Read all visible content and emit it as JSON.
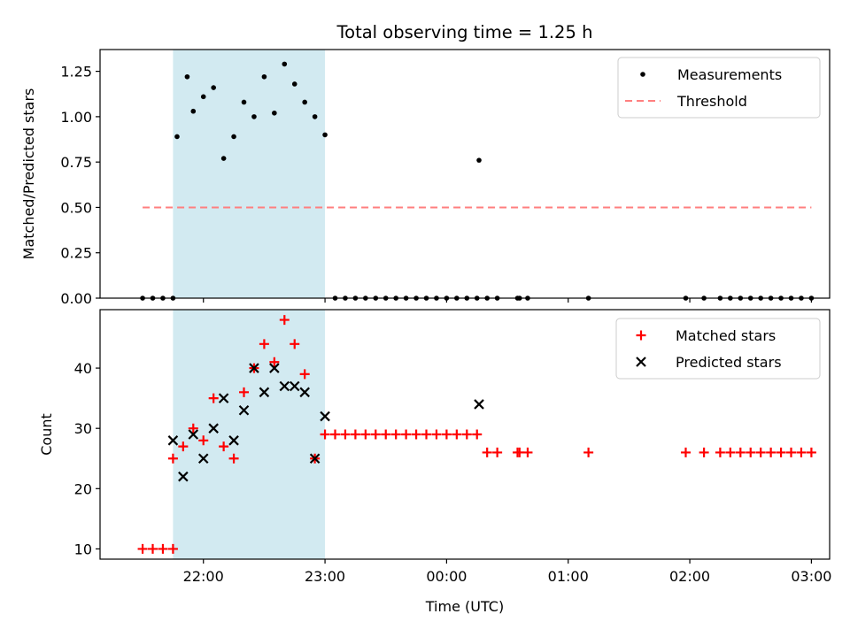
{
  "chart_data": {
    "title": "Total observing time = 1.25 h",
    "xlabel": "Time (UTC)",
    "x_ticks": [
      "22:00",
      "23:00",
      "00:00",
      "01:00",
      "02:00",
      "03:00"
    ],
    "x_range_hours": [
      21.15,
      27.15
    ],
    "shaded_span": [
      "21:45",
      "23:00"
    ],
    "shade_color": "#add8e6",
    "panels": [
      {
        "type": "scatter",
        "ylabel": "Matched/Predicted stars",
        "ylim": [
          0,
          1.37
        ],
        "y_ticks": [
          "0.00",
          "0.25",
          "0.50",
          "0.75",
          "1.00",
          "1.25"
        ],
        "legend_position": "top-right",
        "series": [
          {
            "name": "Measurements",
            "marker": "dot",
            "color": "#000000",
            "points": [
              [
                "21:30",
                0
              ],
              [
                "21:35",
                0
              ],
              [
                "21:40",
                0
              ],
              [
                "21:45",
                0
              ],
              [
                "21:47",
                0.89
              ],
              [
                "21:52",
                1.22
              ],
              [
                "21:55",
                1.03
              ],
              [
                "22:00",
                1.11
              ],
              [
                "22:05",
                1.16
              ],
              [
                "22:10",
                0.77
              ],
              [
                "22:15",
                0.89
              ],
              [
                "22:20",
                1.08
              ],
              [
                "22:25",
                1.0
              ],
              [
                "22:30",
                1.22
              ],
              [
                "22:35",
                1.02
              ],
              [
                "22:40",
                1.29
              ],
              [
                "22:45",
                1.18
              ],
              [
                "22:50",
                1.08
              ],
              [
                "22:55",
                1.0
              ],
              [
                "23:00",
                0.9
              ],
              [
                "23:05",
                0
              ],
              [
                "23:10",
                0
              ],
              [
                "23:15",
                0
              ],
              [
                "23:20",
                0
              ],
              [
                "23:25",
                0
              ],
              [
                "23:30",
                0
              ],
              [
                "23:35",
                0
              ],
              [
                "23:40",
                0
              ],
              [
                "23:45",
                0
              ],
              [
                "23:50",
                0
              ],
              [
                "23:55",
                0
              ],
              [
                "00:00",
                0
              ],
              [
                "00:05",
                0
              ],
              [
                "00:10",
                0
              ],
              [
                "00:15",
                0
              ],
              [
                "00:16",
                0.76
              ],
              [
                "00:20",
                0
              ],
              [
                "00:25",
                0
              ],
              [
                "00:35",
                0
              ],
              [
                "00:36",
                0
              ],
              [
                "00:40",
                0
              ],
              [
                "01:10",
                0
              ],
              [
                "01:58",
                0
              ],
              [
                "02:07",
                0
              ],
              [
                "02:15",
                0
              ],
              [
                "02:20",
                0
              ],
              [
                "02:25",
                0
              ],
              [
                "02:30",
                0
              ],
              [
                "02:35",
                0
              ],
              [
                "02:40",
                0
              ],
              [
                "02:45",
                0
              ],
              [
                "02:50",
                0
              ],
              [
                "02:55",
                0
              ],
              [
                "03:00",
                0
              ]
            ]
          },
          {
            "name": "Threshold",
            "marker": "dashed-line",
            "color": "#ff7f7f",
            "points": [
              [
                "21:30",
                0.5
              ],
              [
                "03:00",
                0.5
              ]
            ]
          }
        ]
      },
      {
        "type": "scatter",
        "ylabel": "Count",
        "ylim": [
          8.3,
          49.7
        ],
        "y_ticks": [
          "10",
          "20",
          "30",
          "40"
        ],
        "legend_position": "top-right",
        "series": [
          {
            "name": "Matched stars",
            "marker": "plus",
            "color": "#ff0000",
            "points": [
              [
                "21:30",
                10
              ],
              [
                "21:35",
                10
              ],
              [
                "21:40",
                10
              ],
              [
                "21:45",
                10
              ],
              [
                "21:45",
                25
              ],
              [
                "21:50",
                27
              ],
              [
                "21:55",
                30
              ],
              [
                "22:00",
                28
              ],
              [
                "22:05",
                35
              ],
              [
                "22:10",
                27
              ],
              [
                "22:15",
                25
              ],
              [
                "22:20",
                36
              ],
              [
                "22:25",
                40
              ],
              [
                "22:30",
                44
              ],
              [
                "22:35",
                41
              ],
              [
                "22:40",
                48
              ],
              [
                "22:45",
                44
              ],
              [
                "22:50",
                39
              ],
              [
                "22:55",
                25
              ],
              [
                "23:00",
                29
              ],
              [
                "23:05",
                29
              ],
              [
                "23:10",
                29
              ],
              [
                "23:15",
                29
              ],
              [
                "23:20",
                29
              ],
              [
                "23:25",
                29
              ],
              [
                "23:30",
                29
              ],
              [
                "23:35",
                29
              ],
              [
                "23:40",
                29
              ],
              [
                "23:45",
                29
              ],
              [
                "23:50",
                29
              ],
              [
                "23:55",
                29
              ],
              [
                "00:00",
                29
              ],
              [
                "00:05",
                29
              ],
              [
                "00:10",
                29
              ],
              [
                "00:15",
                29
              ],
              [
                "00:20",
                26
              ],
              [
                "00:25",
                26
              ],
              [
                "00:35",
                26
              ],
              [
                "00:36",
                26
              ],
              [
                "00:40",
                26
              ],
              [
                "01:10",
                26
              ],
              [
                "01:58",
                26
              ],
              [
                "02:07",
                26
              ],
              [
                "02:15",
                26
              ],
              [
                "02:20",
                26
              ],
              [
                "02:25",
                26
              ],
              [
                "02:30",
                26
              ],
              [
                "02:35",
                26
              ],
              [
                "02:40",
                26
              ],
              [
                "02:45",
                26
              ],
              [
                "02:50",
                26
              ],
              [
                "02:55",
                26
              ],
              [
                "03:00",
                26
              ]
            ]
          },
          {
            "name": "Predicted stars",
            "marker": "x",
            "color": "#000000",
            "points": [
              [
                "21:45",
                28
              ],
              [
                "21:50",
                22
              ],
              [
                "21:55",
                29
              ],
              [
                "22:00",
                25
              ],
              [
                "22:05",
                30
              ],
              [
                "22:10",
                35
              ],
              [
                "22:15",
                28
              ],
              [
                "22:20",
                33
              ],
              [
                "22:25",
                40
              ],
              [
                "22:30",
                36
              ],
              [
                "22:35",
                40
              ],
              [
                "22:40",
                37
              ],
              [
                "22:45",
                37
              ],
              [
                "22:50",
                36
              ],
              [
                "22:55",
                25
              ],
              [
                "23:00",
                32
              ],
              [
                "00:16",
                34
              ]
            ]
          }
        ]
      }
    ]
  }
}
